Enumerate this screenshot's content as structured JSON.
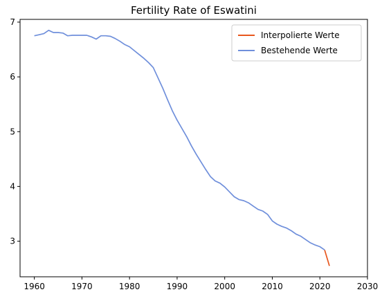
{
  "chart_data": {
    "type": "line",
    "title": "Fertility Rate of Eswatini",
    "xlabel": "",
    "ylabel": "",
    "xlim": [
      1957,
      2030
    ],
    "ylim": [
      2.35,
      7.05
    ],
    "xticks": [
      1960,
      1970,
      1980,
      1990,
      2000,
      2010,
      2020,
      2030
    ],
    "yticks": [
      3,
      4,
      5,
      6,
      7
    ],
    "grid": false,
    "legend_position": "top-right",
    "series": [
      {
        "name": "Interpolierte Werte",
        "color": "#e8561c",
        "x": [
          2021,
          2022
        ],
        "y": [
          2.84,
          2.55
        ]
      },
      {
        "name": "Bestehende Werte",
        "color": "#6f8fdb",
        "x": [
          1960,
          1961,
          1962,
          1963,
          1964,
          1965,
          1966,
          1967,
          1968,
          1969,
          1970,
          1971,
          1972,
          1973,
          1974,
          1975,
          1976,
          1977,
          1978,
          1979,
          1980,
          1981,
          1982,
          1983,
          1984,
          1985,
          1986,
          1987,
          1988,
          1989,
          1990,
          1991,
          1992,
          1993,
          1994,
          1995,
          1996,
          1997,
          1998,
          1999,
          2000,
          2001,
          2002,
          2003,
          2004,
          2005,
          2006,
          2007,
          2008,
          2009,
          2010,
          2011,
          2012,
          2013,
          2014,
          2015,
          2016,
          2017,
          2018,
          2019,
          2020,
          2021
        ],
        "y": [
          6.75,
          6.77,
          6.79,
          6.85,
          6.81,
          6.81,
          6.8,
          6.75,
          6.76,
          6.76,
          6.76,
          6.76,
          6.73,
          6.69,
          6.75,
          6.75,
          6.74,
          6.7,
          6.65,
          6.59,
          6.55,
          6.48,
          6.41,
          6.34,
          6.26,
          6.17,
          5.98,
          5.79,
          5.58,
          5.38,
          5.21,
          5.06,
          4.91,
          4.74,
          4.59,
          4.45,
          4.31,
          4.18,
          4.1,
          4.06,
          3.99,
          3.9,
          3.81,
          3.76,
          3.74,
          3.7,
          3.64,
          3.58,
          3.55,
          3.49,
          3.37,
          3.31,
          3.27,
          3.24,
          3.19,
          3.13,
          3.09,
          3.03,
          2.97,
          2.93,
          2.9,
          2.84
        ]
      }
    ]
  }
}
